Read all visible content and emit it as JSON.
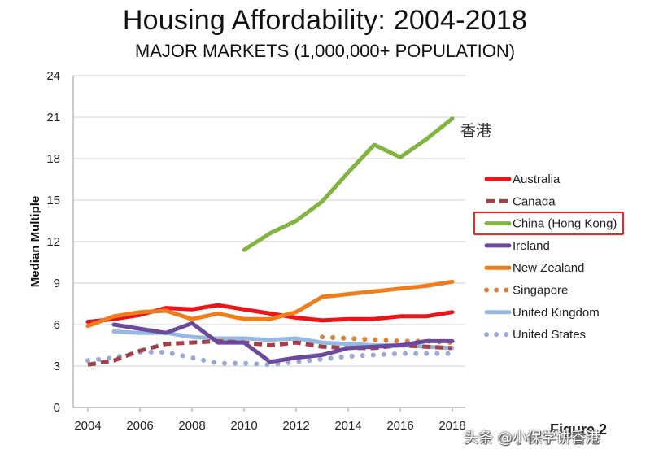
{
  "chart_data": {
    "type": "line",
    "title": "Housing Affordability: 2004-2018",
    "subtitle": "MAJOR MARKETS (1,000,000+ POPULATION)",
    "ylabel": "Median Multiple",
    "xlabel": "",
    "ylim": [
      0,
      24
    ],
    "xlim": [
      2004,
      2018
    ],
    "yticks": [
      0,
      3,
      6,
      9,
      12,
      15,
      18,
      21,
      24
    ],
    "xticks": [
      2004,
      2006,
      2008,
      2010,
      2012,
      2014,
      2016,
      2018
    ],
    "grid": "horizontal",
    "legend_position": "right",
    "highlighted_series": "China (Hong Kong)",
    "annotation": {
      "text": "香港",
      "series": "China (Hong Kong)"
    },
    "series": [
      {
        "name": "Australia",
        "color": "#e8161a",
        "style": "solid",
        "x": [
          2004,
          2005,
          2006,
          2007,
          2008,
          2009,
          2010,
          2011,
          2012,
          2013,
          2014,
          2015,
          2016,
          2017,
          2018
        ],
        "y": [
          6.2,
          6.4,
          6.7,
          7.2,
          7.1,
          7.4,
          7.1,
          6.8,
          6.5,
          6.3,
          6.4,
          6.4,
          6.6,
          6.6,
          6.9
        ]
      },
      {
        "name": "Canada",
        "color": "#a0424a",
        "style": "dashed",
        "x": [
          2004,
          2005,
          2006,
          2007,
          2008,
          2009,
          2010,
          2011,
          2012,
          2013,
          2014,
          2015,
          2016,
          2017,
          2018
        ],
        "y": [
          3.1,
          3.4,
          4.1,
          4.6,
          4.7,
          4.8,
          4.7,
          4.5,
          4.7,
          4.4,
          4.3,
          4.3,
          4.5,
          4.4,
          4.3
        ]
      },
      {
        "name": "China (Hong Kong)",
        "color": "#82b440",
        "style": "solid",
        "x": [
          2010,
          2011,
          2012,
          2013,
          2014,
          2015,
          2016,
          2017,
          2018
        ],
        "y": [
          11.4,
          12.6,
          13.5,
          14.9,
          17.0,
          19.0,
          18.1,
          19.4,
          20.9
        ]
      },
      {
        "name": "Ireland",
        "color": "#6b4a9c",
        "style": "solid",
        "x": [
          2005,
          2006,
          2007,
          2008,
          2009,
          2010,
          2011,
          2012,
          2013,
          2014,
          2015,
          2016,
          2017,
          2018
        ],
        "y": [
          6.0,
          5.7,
          5.4,
          6.1,
          4.7,
          4.7,
          3.3,
          3.6,
          3.8,
          4.3,
          4.4,
          4.5,
          4.8,
          4.8
        ]
      },
      {
        "name": "New Zealand",
        "color": "#f07d1c",
        "style": "solid",
        "x": [
          2004,
          2005,
          2006,
          2007,
          2008,
          2009,
          2010,
          2011,
          2012,
          2013,
          2014,
          2015,
          2016,
          2017,
          2018
        ],
        "y": [
          5.9,
          6.6,
          6.9,
          7.0,
          6.4,
          6.8,
          6.4,
          6.4,
          6.9,
          8.0,
          8.2,
          8.4,
          8.6,
          8.8,
          9.1
        ]
      },
      {
        "name": "Singapore",
        "color": "#d9823a",
        "style": "dotted",
        "x": [
          2013,
          2014,
          2015,
          2016,
          2017,
          2018
        ],
        "y": [
          5.1,
          5.0,
          4.9,
          4.8,
          4.8,
          4.7
        ]
      },
      {
        "name": "United Kingdom",
        "color": "#97b9df",
        "style": "solid",
        "x": [
          2005,
          2006,
          2007,
          2008,
          2009,
          2010,
          2011,
          2012,
          2013,
          2014,
          2015,
          2016,
          2017,
          2018
        ],
        "y": [
          5.5,
          5.4,
          5.4,
          5.1,
          5.0,
          5.0,
          4.9,
          5.0,
          4.7,
          4.6,
          4.5,
          4.5,
          4.4,
          4.3
        ]
      },
      {
        "name": "United States",
        "color": "#9aaad6",
        "style": "dotted",
        "x": [
          2004,
          2005,
          2006,
          2007,
          2008,
          2009,
          2010,
          2011,
          2012,
          2013,
          2014,
          2015,
          2016,
          2017,
          2018
        ],
        "y": [
          3.4,
          3.6,
          4.0,
          4.0,
          3.6,
          3.2,
          3.2,
          3.1,
          3.3,
          3.5,
          3.7,
          3.8,
          3.9,
          3.9,
          3.9
        ]
      }
    ]
  },
  "footer": {
    "figure_label": "Figure 2",
    "watermark": "头条 @小保学讲香港"
  }
}
